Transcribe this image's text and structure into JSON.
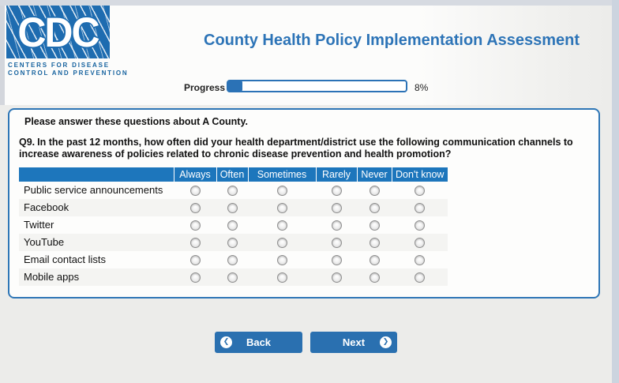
{
  "header": {
    "logo": {
      "acronym": "CDC",
      "line1": "CENTERS FOR DISEASE",
      "line2": "CONTROL AND PREVENTION"
    },
    "title": "County Health Policy Implementation Assessment"
  },
  "progress": {
    "label": "Progress",
    "percent": 8,
    "percent_text": "8%"
  },
  "panel": {
    "intro": "Please answer these questions about A County.",
    "question_number": "Q9.",
    "question_text": "In the past 12 months, how often did your health department/district use the following communication channels to increase awareness of policies related to chronic disease prevention and health promotion?",
    "table": {
      "columns": [
        "Always",
        "Often",
        "Sometimes",
        "Rarely",
        "Never",
        "Don't know"
      ],
      "rows": [
        "Public service announcements",
        "Facebook",
        "Twitter",
        "YouTube",
        "Email contact lists",
        "Mobile apps"
      ]
    }
  },
  "buttons": {
    "back_label": "Back",
    "next_label": "Next",
    "back_icon_glyph": "❮",
    "next_icon_glyph": "❯"
  },
  "colors": {
    "brand_blue": "#1e6cb0",
    "title_blue": "#2d74b7",
    "table_header_blue": "#1d76bc",
    "button_blue": "#2a70b0",
    "panel_border_blue": "#2e76b6",
    "page_background": "#ececea"
  }
}
